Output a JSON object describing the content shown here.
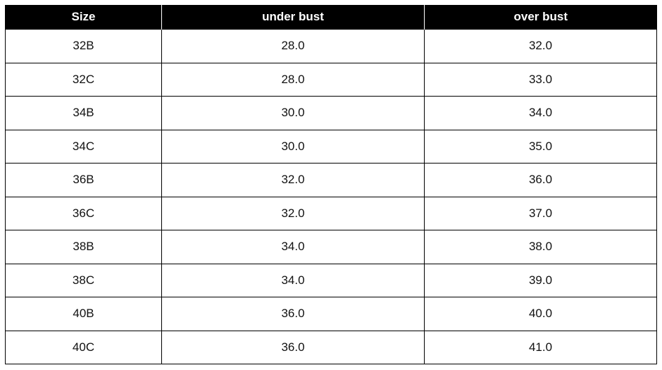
{
  "table": {
    "headers": [
      "Size",
      "under bust",
      "over bust"
    ],
    "rows": [
      [
        "32B",
        "28.0",
        "32.0"
      ],
      [
        "32C",
        "28.0",
        "33.0"
      ],
      [
        "34B",
        "30.0",
        "34.0"
      ],
      [
        "34C",
        "30.0",
        "35.0"
      ],
      [
        "36B",
        "32.0",
        "36.0"
      ],
      [
        "36C",
        "32.0",
        "37.0"
      ],
      [
        "38B",
        "34.0",
        "38.0"
      ],
      [
        "38C",
        "34.0",
        "39.0"
      ],
      [
        "40B",
        "36.0",
        "40.0"
      ],
      [
        "40C",
        "36.0",
        "41.0"
      ]
    ]
  }
}
